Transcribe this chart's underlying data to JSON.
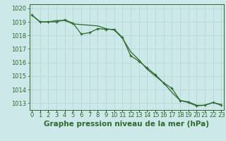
{
  "hours": [
    0,
    1,
    2,
    3,
    4,
    5,
    6,
    7,
    8,
    9,
    10,
    11,
    12,
    13,
    14,
    15,
    16,
    17,
    18,
    19,
    20,
    21,
    22,
    23
  ],
  "line_smooth": [
    1019.5,
    1019.0,
    1019.0,
    1019.1,
    1019.1,
    1018.85,
    1018.8,
    1018.75,
    1018.7,
    1018.5,
    1018.4,
    1017.8,
    1016.8,
    1016.2,
    1015.5,
    1015.0,
    1014.5,
    1013.8,
    1013.2,
    1013.1,
    1012.85,
    1012.85,
    1013.05,
    1012.9
  ],
  "line_markers": [
    1019.5,
    1019.0,
    1019.0,
    1019.0,
    1019.15,
    1018.9,
    1018.1,
    1018.2,
    1018.5,
    1018.45,
    1018.45,
    1017.85,
    1016.5,
    1016.1,
    1015.6,
    1015.1,
    1014.5,
    1014.1,
    1013.2,
    1013.05,
    1012.8,
    1012.85,
    1013.05,
    1012.85
  ],
  "line_color": "#2d6a2d",
  "bg_color": "#cce8e8",
  "grid_color": "#b0d4d4",
  "xlabel": "Graphe pression niveau de la mer (hPa)",
  "ylim": [
    1012.5,
    1020.3
  ],
  "yticks": [
    1013,
    1014,
    1015,
    1016,
    1017,
    1018,
    1019,
    1020
  ],
  "xlabel_fontsize": 7.5,
  "tick_fontsize": 6.0
}
